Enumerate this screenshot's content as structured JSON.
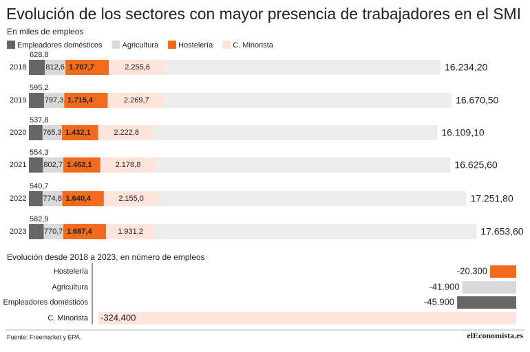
{
  "chart_data": [
    {
      "type": "bar",
      "orientation": "horizontal",
      "stacked": true,
      "title": "Evolución de los sectores con mayor presencia de trabajadores en el SMI",
      "subtitle": "En miles de empleos",
      "categories": [
        "2018",
        "2019",
        "2020",
        "2021",
        "2022",
        "2023"
      ],
      "series": [
        {
          "name": "Empleadores domésticos",
          "color": "#666666",
          "values": [
            628.8,
            595.2,
            537.8,
            554.3,
            540.7,
            582.9
          ],
          "value_labels": [
            "628,8",
            "595,2",
            "537,8",
            "554,3",
            "540,7",
            "582,9"
          ]
        },
        {
          "name": "Agricultura",
          "color": "#d9d9d9",
          "values": [
            812.6,
            797.3,
            765.3,
            802.7,
            774.8,
            770.7
          ],
          "value_labels": [
            "812,6",
            "797,3",
            "765,3",
            "802,7",
            "774,8",
            "770,7"
          ]
        },
        {
          "name": "Hostelería",
          "color": "#f26b1d",
          "values": [
            1707.7,
            1715.4,
            1432.1,
            1462.1,
            1640.4,
            1687.4
          ],
          "value_labels": [
            "1.707,7",
            "1.715,4",
            "1.432,1",
            "1.462,1",
            "1.640,4",
            "1.687,4"
          ]
        },
        {
          "name": "C. Minorista",
          "color": "#fde3da",
          "values": [
            2255.6,
            2269.7,
            2222.8,
            2178.8,
            2155.0,
            1931.2
          ],
          "value_labels": [
            "2.255,6",
            "2.269,7",
            "2.222,8",
            "2.178,8",
            "2.155,0",
            "1.931,2"
          ]
        }
      ],
      "total": {
        "color": "#ececec",
        "values": [
          16234.2,
          16670.5,
          16109.1,
          16625.6,
          17251.8,
          17653.6
        ],
        "value_labels": [
          "16.234,20",
          "16.670,50",
          "16.109,10",
          "16.625,60",
          "17.251,80",
          "17.653,60"
        ]
      }
    },
    {
      "type": "bar",
      "orientation": "horizontal",
      "title": "Evolución desde 2018 a 2023, en número de empleos",
      "categories": [
        "Hostelería",
        "Agricultura",
        "Empleadores domésticos",
        "C. Minorista"
      ],
      "values": [
        -20300,
        -41900,
        -45900,
        -324400
      ],
      "value_labels": [
        "-20.300",
        "-41.900",
        "-45.900",
        "-324.400"
      ],
      "colors": [
        "#f26b1d",
        "#d9d9d9",
        "#666666",
        "#fde3da"
      ]
    }
  ],
  "source": "Fuente: Freemarket y EPA.",
  "logo": "elEconomista.es"
}
